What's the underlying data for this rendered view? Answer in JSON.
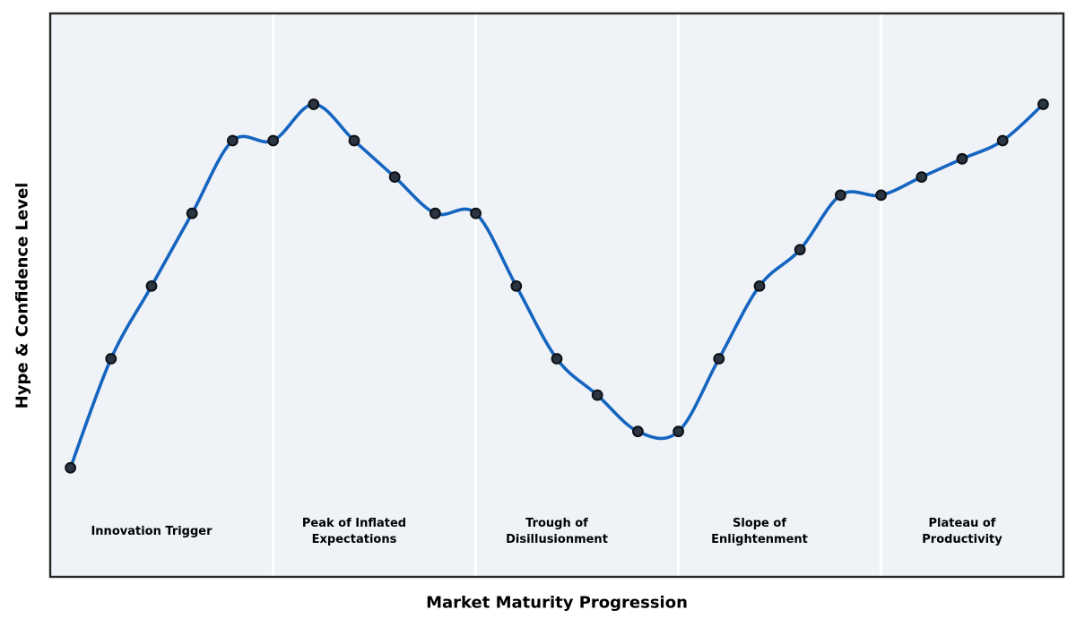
{
  "chart_data": {
    "type": "line",
    "title": "",
    "xlabel": "Market Maturity Progression",
    "ylabel": "Hype & Confidence Level",
    "x": [
      0,
      1,
      2,
      3,
      4,
      5,
      6,
      7,
      8,
      9,
      10,
      11,
      12,
      13,
      14,
      15,
      16,
      17,
      18,
      19,
      20,
      21,
      22,
      23,
      24
    ],
    "values": [
      5,
      20,
      30,
      40,
      50,
      50,
      55,
      50,
      45,
      40,
      40,
      30,
      20,
      15,
      10,
      10,
      20,
      30,
      35,
      42.5,
      42.5,
      45,
      47.5,
      50,
      55
    ],
    "xlim": [
      -0.5,
      24.5
    ],
    "ylim": [
      -10,
      67.5
    ],
    "grid": false,
    "legend": "none",
    "line_smoothing": "spline",
    "marker": "circle",
    "phase_dividers_x": [
      5,
      10,
      15,
      20
    ],
    "phases": [
      {
        "label": "Innovation Trigger",
        "x": 2,
        "y": -3.8
      },
      {
        "label": "Peak of Inflated\nExpectations",
        "x": 7,
        "y": -3.8
      },
      {
        "label": "Trough of\nDisillusionment",
        "x": 12,
        "y": -3.8
      },
      {
        "label": "Slope of\nEnlightenment",
        "x": 17,
        "y": -3.8
      },
      {
        "label": "Plateau of\nProductivity",
        "x": 22,
        "y": -3.8
      }
    ],
    "colors": {
      "line": "#1565c0",
      "marker_face": "#2b3542",
      "marker_edge": "#0d1015",
      "plot_background": "#eff3f7",
      "divider": "#ffffff",
      "border": "#262626",
      "text": "#000000"
    }
  }
}
